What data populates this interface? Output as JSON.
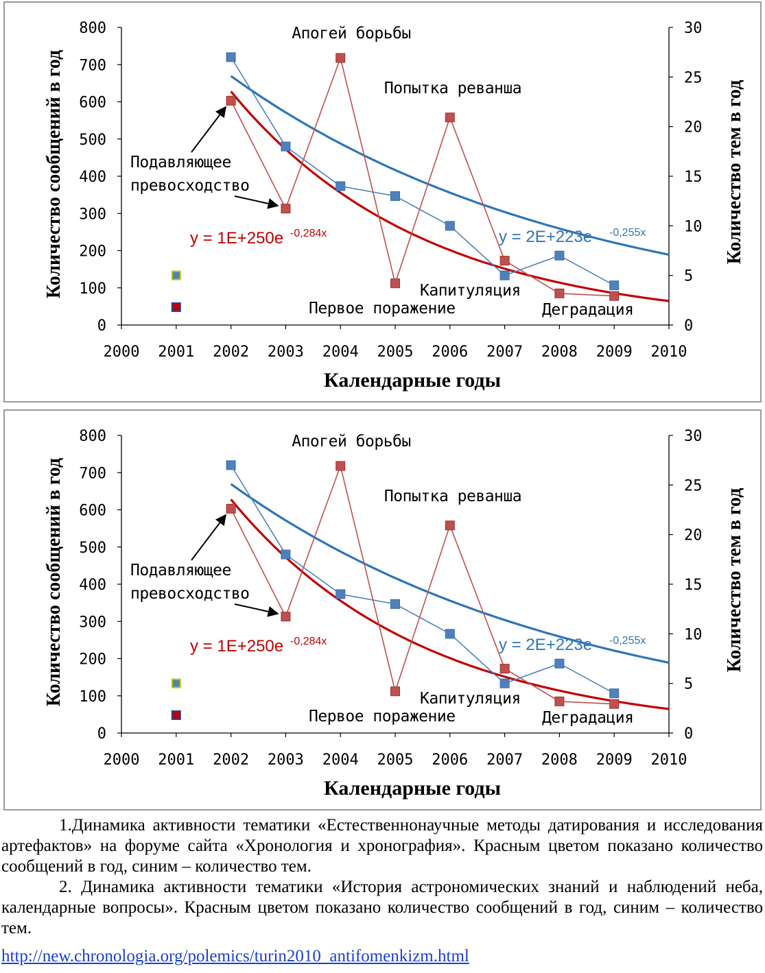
{
  "charts": [
    {
      "chart_data": {
        "type": "line",
        "x_axis": {
          "label": "Календарные годы",
          "range": [
            2000,
            2010
          ],
          "ticks": [
            "2000",
            "2001",
            "2002",
            "2003",
            "2004",
            "2005",
            "2006",
            "2007",
            "2008",
            "2009",
            "2010"
          ]
        },
        "y_left": {
          "label": "Количество сообщений в год",
          "range": [
            0,
            800
          ],
          "ticks": [
            "0",
            "100",
            "200",
            "300",
            "400",
            "500",
            "600",
            "700",
            "800"
          ]
        },
        "y_right": {
          "label": "Количество тем в год",
          "range": [
            0,
            30
          ],
          "ticks": [
            "0",
            "5",
            "10",
            "15",
            "20",
            "25",
            "30"
          ]
        },
        "series": [
          {
            "axis": "left",
            "color": "#c0504d",
            "x": [
              2002,
              2003,
              2004,
              2005,
              2006,
              2007,
              2008,
              2009
            ],
            "values": [
              603,
              313,
              718,
              112,
              558,
              173,
              85,
              78
            ]
          },
          {
            "axis": "right",
            "color": "#4f81bd",
            "x": [
              2002,
              2003,
              2004,
              2005,
              2006,
              2007,
              2008,
              2009
            ],
            "values": [
              27,
              18,
              14,
              13,
              10,
              5,
              7,
              4
            ]
          }
        ],
        "trendlines": [
          {
            "color": "#c00000",
            "equation": "y = 1E+250e",
            "exponent": "-0,284x"
          },
          {
            "color": "#2e75b6",
            "equation": "y = 2E+223e",
            "exponent": "-0,255x"
          }
        ],
        "legend_markers": [
          {
            "color": "#4f81bd",
            "border": "#c8c800"
          },
          {
            "color": "#c00000",
            "border": "#2040a0"
          }
        ],
        "annotations": [
          "Апогей борьбы",
          "Попытка реванша",
          "Подавляющее",
          "превосходство",
          "Капитуляция",
          "Первое поражение",
          "Деградация"
        ]
      }
    },
    {
      "chart_data": {
        "type": "line",
        "x_axis": {
          "label": "Календарные годы",
          "range": [
            2000,
            2010
          ],
          "ticks": [
            "2000",
            "2001",
            "2002",
            "2003",
            "2004",
            "2005",
            "2006",
            "2007",
            "2008",
            "2009",
            "2010"
          ]
        },
        "y_left": {
          "label": "Количество сообщений в год",
          "range": [
            0,
            800
          ],
          "ticks": [
            "0",
            "100",
            "200",
            "300",
            "400",
            "500",
            "600",
            "700",
            "800"
          ]
        },
        "y_right": {
          "label": "Количество тем в год",
          "range": [
            0,
            30
          ],
          "ticks": [
            "0",
            "5",
            "10",
            "15",
            "20",
            "25",
            "30"
          ]
        },
        "series": [
          {
            "axis": "left",
            "color": "#c0504d",
            "x": [
              2002,
              2003,
              2004,
              2005,
              2006,
              2007,
              2008,
              2009
            ],
            "values": [
              603,
              313,
              718,
              112,
              558,
              173,
              85,
              78
            ]
          },
          {
            "axis": "right",
            "color": "#4f81bd",
            "x": [
              2002,
              2003,
              2004,
              2005,
              2006,
              2007,
              2008,
              2009
            ],
            "values": [
              27,
              18,
              14,
              13,
              10,
              5,
              7,
              4
            ]
          }
        ],
        "trendlines": [
          {
            "color": "#c00000",
            "equation": "y = 1E+250e",
            "exponent": "-0,284x"
          },
          {
            "color": "#2e75b6",
            "equation": "y = 2E+223e",
            "exponent": "-0,255x"
          }
        ],
        "legend_markers": [
          {
            "color": "#4f81bd",
            "border": "#c8c800"
          },
          {
            "color": "#c00000",
            "border": "#2040a0"
          }
        ],
        "annotations": [
          "Апогей борьбы",
          "Попытка реванша",
          "Подавляющее",
          "превосходство",
          "Капитуляция",
          "Первое поражение",
          "Деградация"
        ]
      }
    }
  ],
  "caption": {
    "p1": "1.Динамика активности тематики «Естественнонаучные методы датирования и исследования артефактов» на  форуме сайта «Хронология и хронография». Красным цветом показано количество сообщений в год, синим – количество тем.",
    "p2": "2. Динамика активности тематики «История астрономических знаний и наблюдений неба, календарные вопросы». Красным цветом показано количество сообщений в год, синим – количество тем.",
    "link": "http://new.chronologia.org/polemics/turin2010_antifomenkizm.html"
  }
}
